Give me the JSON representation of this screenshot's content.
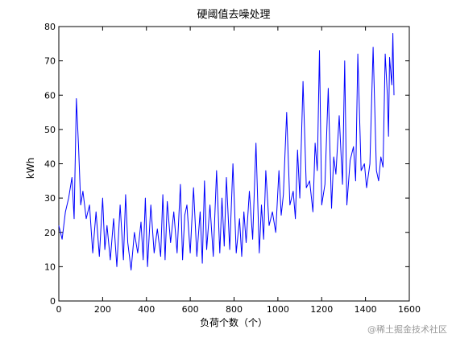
{
  "chart_data": {
    "type": "line",
    "title": "硬阈值去噪处理",
    "xlabel": "负荷个数（个）",
    "ylabel": "kWh",
    "xlim": [
      0,
      1600
    ],
    "ylim": [
      0,
      80
    ],
    "xticks": [
      0,
      200,
      400,
      600,
      800,
      1000,
      1200,
      1400,
      1600
    ],
    "yticks": [
      0,
      10,
      20,
      30,
      40,
      50,
      60,
      70,
      80
    ],
    "grid": false,
    "legend": "none",
    "line_color": "#0000ff",
    "series": [
      {
        "x": [
          0,
          15,
          30,
          45,
          60,
          70,
          80,
          90,
          100,
          110,
          125,
          140,
          155,
          170,
          185,
          200,
          210,
          220,
          235,
          250,
          265,
          280,
          295,
          305,
          315,
          330,
          345,
          360,
          375,
          385,
          395,
          405,
          420,
          435,
          450,
          465,
          475,
          485,
          495,
          510,
          525,
          540,
          555,
          565,
          575,
          585,
          600,
          615,
          630,
          645,
          655,
          665,
          675,
          690,
          705,
          720,
          735,
          745,
          755,
          765,
          780,
          795,
          810,
          825,
          835,
          845,
          855,
          870,
          885,
          900,
          915,
          925,
          935,
          945,
          960,
          975,
          990,
          1005,
          1015,
          1025,
          1040,
          1055,
          1070,
          1080,
          1090,
          1100,
          1115,
          1130,
          1145,
          1160,
          1170,
          1180,
          1190,
          1200,
          1215,
          1230,
          1245,
          1255,
          1265,
          1280,
          1295,
          1305,
          1315,
          1330,
          1345,
          1355,
          1365,
          1380,
          1395,
          1405,
          1420,
          1435,
          1450,
          1460,
          1470,
          1480,
          1490,
          1500,
          1505,
          1510,
          1520,
          1525,
          1530
        ],
        "y": [
          22,
          18,
          26,
          30,
          36,
          24,
          59,
          45,
          28,
          32,
          24,
          28,
          14,
          26,
          13,
          30,
          15,
          22,
          12,
          24,
          10,
          28,
          12,
          31,
          17,
          9,
          20,
          14,
          23,
          12,
          30,
          10,
          28,
          14,
          21,
          13,
          31,
          12,
          29,
          17,
          26,
          14,
          34,
          12,
          25,
          28,
          14,
          33,
          13,
          26,
          11,
          35,
          15,
          28,
          13,
          38,
          14,
          30,
          16,
          36,
          15,
          40,
          14,
          24,
          13,
          26,
          17,
          32,
          18,
          46,
          14,
          28,
          18,
          38,
          22,
          26,
          20,
          38,
          25,
          31,
          55,
          28,
          32,
          24,
          44,
          30,
          64,
          33,
          35,
          26,
          46,
          38,
          73,
          28,
          34,
          62,
          27,
          42,
          37,
          54,
          34,
          70,
          28,
          41,
          45,
          35,
          72,
          38,
          40,
          33,
          40,
          74,
          38,
          35,
          42,
          39,
          72,
          60,
          48,
          71,
          63,
          78,
          60
        ]
      }
    ]
  },
  "watermark": "@稀土掘金技术社区"
}
